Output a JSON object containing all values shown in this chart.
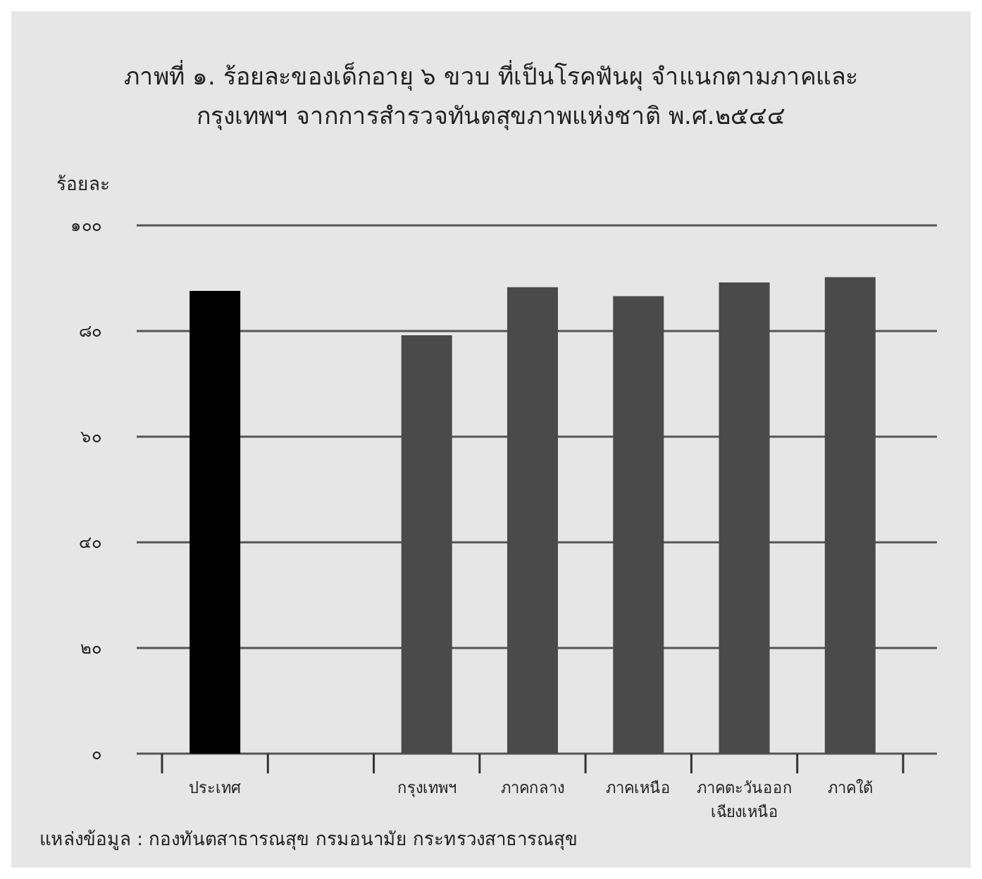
{
  "chart_data": {
    "type": "bar",
    "title": "ภาพที่ ๑. ร้อยละของเด็กอายุ ๖ ขวบ ที่เป็นโรคฟันผุ จำแนกตามภาคและ\nกรุงเทพฯ จากการสำรวจทันตสุขภาพแห่งชาติ พ.ศ.๒๕๔๔",
    "ylabel": "ร้อยละ",
    "categories": [
      "ประเทศ",
      null,
      "กรุงเทพฯ",
      "ภาคกลาง",
      "ภาคเหนือ",
      "ภาคตะวันออก\nเฉียงเหนือ",
      "ภาคใต้"
    ],
    "values": [
      87.6,
      null,
      79.2,
      88.3,
      86.6,
      89.2,
      90.2
    ],
    "colors": [
      "#000000",
      null,
      "#4a4a4a",
      "#4a4a4a",
      "#4a4a4a",
      "#4a4a4a",
      "#4a4a4a"
    ],
    "ylim": [
      0,
      100
    ],
    "yticks": [
      {
        "value": 0,
        "label": "๐"
      },
      {
        "value": 20,
        "label": "๒๐"
      },
      {
        "value": 40,
        "label": "๔๐"
      },
      {
        "value": 60,
        "label": "๖๐"
      },
      {
        "value": 80,
        "label": "๘๐"
      },
      {
        "value": 100,
        "label": "๑๐๐"
      }
    ],
    "grid": "y",
    "annotations": [
      "แหล่งข้อมูล : กองทันตสาธารณสุข กรมอนามัย กระทรวงสาธารณสุข"
    ]
  }
}
